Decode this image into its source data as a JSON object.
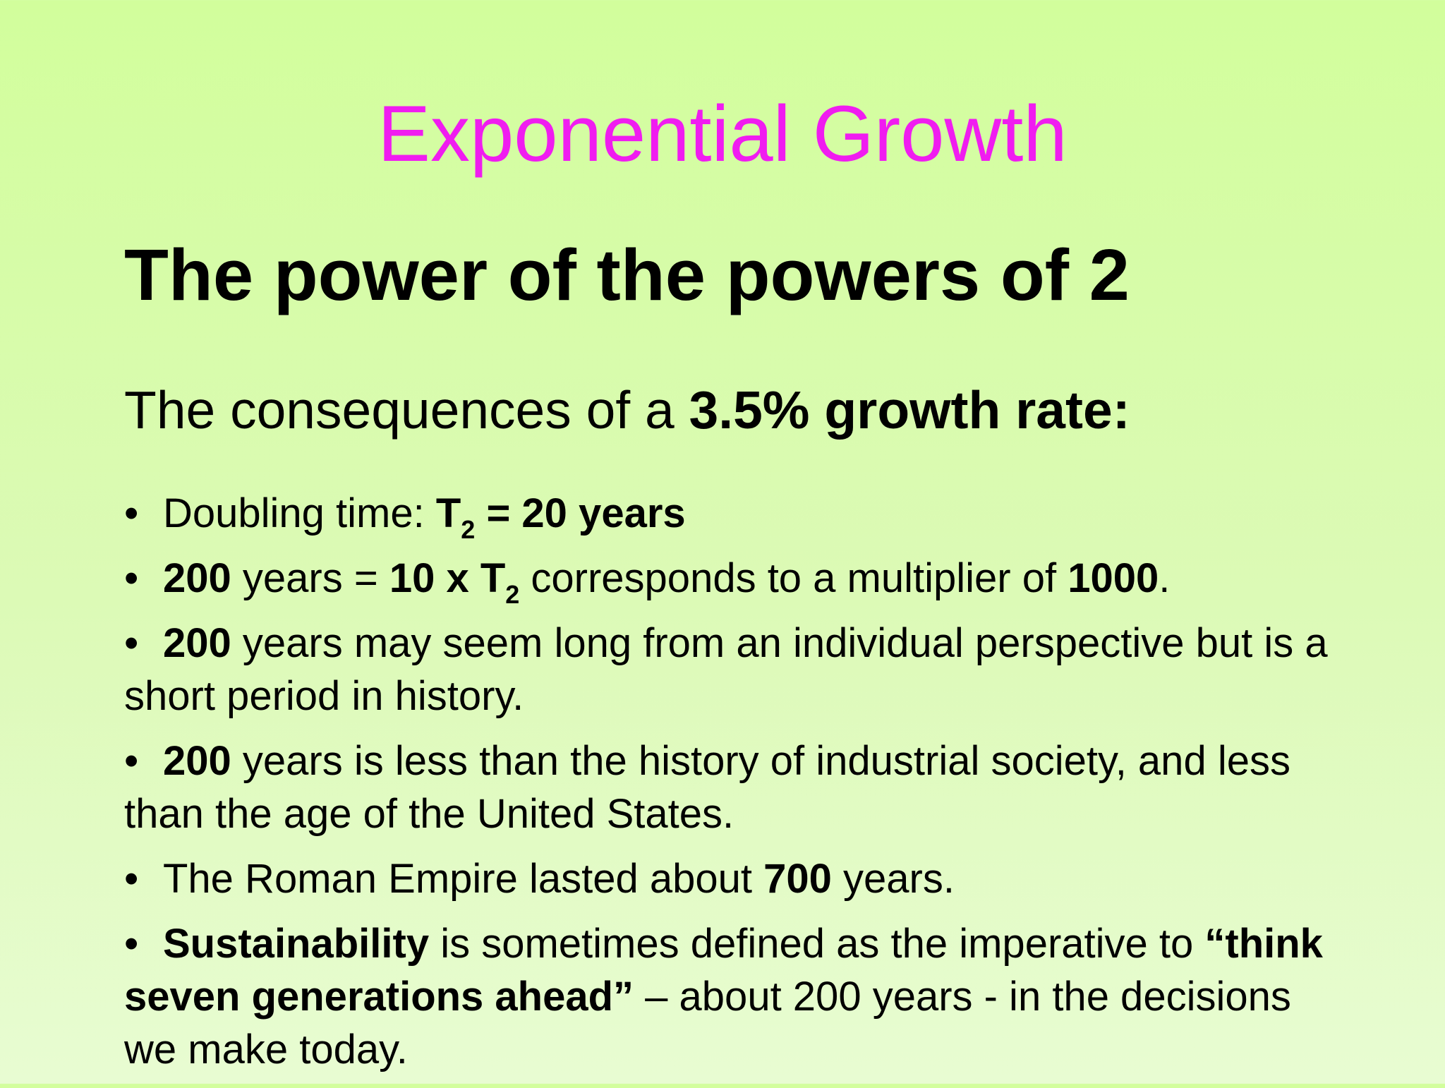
{
  "slide": {
    "title": "Exponential Growth",
    "heading": "The power of the powers of 2",
    "subheading": {
      "prefix": "The consequences of a ",
      "bold": "3.5% growth rate:"
    },
    "bullet_symbol": "•",
    "bullets": [
      {
        "b1_label": "Doubling time: ",
        "b1_T": "T",
        "b1_sub": "2",
        "b1_bold_end": " = 20 years"
      },
      {
        "b2_num": "200",
        "b2_text1": " years = ",
        "b2_bold": "10 x T",
        "b2_sub": "2",
        "b2_text2": "  corresponds to a multiplier of ",
        "b2_num2": "1000",
        "b2_end": "."
      },
      {
        "b3_num": "200",
        "b3_text": " years may seem long from an individual perspective but is a short period in history."
      },
      {
        "b4_num": "200",
        "b4_text": " years is less than the history of industrial society, and less than the age of the United States."
      },
      {
        "b5_text1": "The Roman Empire lasted about ",
        "b5_num": "700",
        "b5_text2": " years."
      },
      {
        "b6_bold1": "Sustainability",
        "b6_text1": " is sometimes defined as the imperative to ",
        "b6_bold2": "“think seven generations ahead”",
        "b6_text2": " – about 200 years - in the decisions we make today."
      }
    ]
  }
}
